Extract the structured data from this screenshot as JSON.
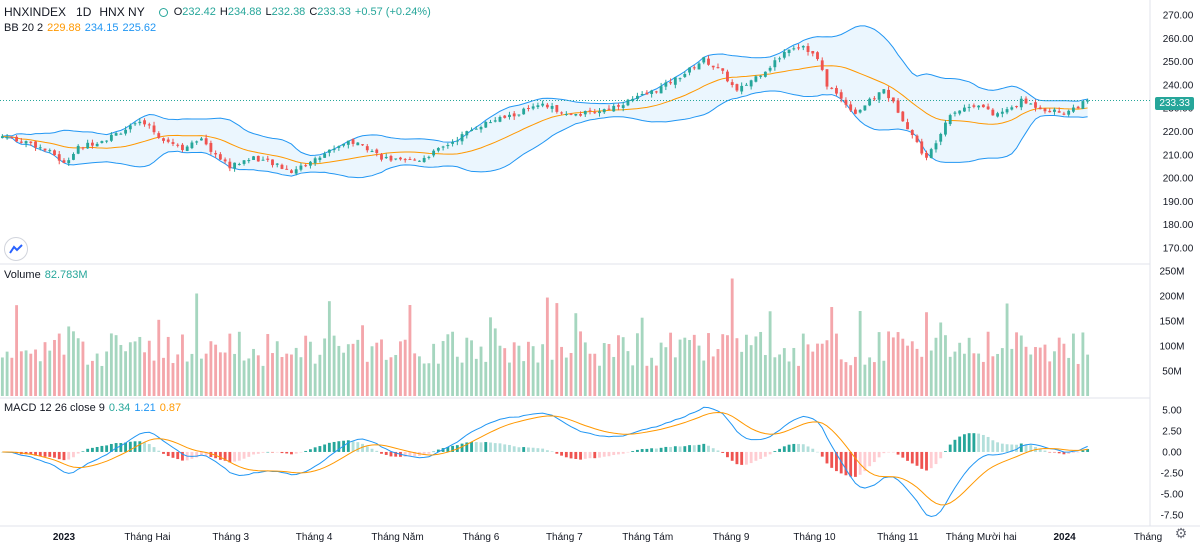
{
  "header": {
    "symbol": "HNXINDEX",
    "interval": "1D",
    "exchange": "HNX NY",
    "ohlc": {
      "o_label": "O",
      "o": "232.42",
      "h_label": "H",
      "h": "234.88",
      "l_label": "L",
      "l": "232.38",
      "c_label": "C",
      "c": "233.33",
      "change": "+0.57 (+0.24%)"
    }
  },
  "bb_legend": {
    "name": "BB 20 2",
    "basis": "229.88",
    "upper": "234.15",
    "lower": "225.62"
  },
  "volume_legend": {
    "name": "Volume",
    "value": "82.783M"
  },
  "macd_legend": {
    "name": "MACD 12 26 close 9",
    "hist": "0.34",
    "macd": "1.21",
    "signal": "0.87"
  },
  "last_price_tag": "233.33",
  "colors": {
    "up": "#26a69a",
    "down": "#ef5350",
    "vol_up": "#a5d6bf",
    "vol_down": "#f4a6ab",
    "bb_band": "#2196f3",
    "bb_basis": "#ff9800",
    "bb_fill": "#e3f2fd",
    "macd": "#2196f3",
    "signal": "#ff9800"
  },
  "chart_data": {
    "type": "candlestick",
    "price_axis": {
      "ticks": [
        "270.00",
        "260.00",
        "250.00",
        "240.00",
        "230.00",
        "220.00",
        "210.00",
        "200.00",
        "190.00",
        "180.00",
        "170.00"
      ],
      "range": [
        164,
        273
      ]
    },
    "volume_axis": {
      "ticks": [
        "250M",
        "200M",
        "150M",
        "100M",
        "50M"
      ],
      "range": [
        0,
        260
      ]
    },
    "macd_axis": {
      "ticks": [
        "5.00",
        "2.50",
        "0.00",
        "-2.50",
        "-5.00",
        "-7.50"
      ],
      "range": [
        -8.6,
        6.2
      ]
    },
    "time_axis": [
      "2023",
      "Tháng Hai",
      "Tháng 3",
      "Tháng 4",
      "Tháng Năm",
      "Tháng 6",
      "Tháng 7",
      "Tháng Tám",
      "Tháng 9",
      "Tháng 10",
      "Tháng 11",
      "Tháng Mười hai",
      "2024",
      "Tháng"
    ],
    "close_keypoints": [
      [
        0,
        218
      ],
      [
        6,
        215
      ],
      [
        11,
        210
      ],
      [
        13,
        206
      ],
      [
        16,
        213
      ],
      [
        22,
        217
      ],
      [
        26,
        221
      ],
      [
        30,
        224
      ],
      [
        33,
        218
      ],
      [
        38,
        213
      ],
      [
        42,
        216
      ],
      [
        45,
        210
      ],
      [
        48,
        205
      ],
      [
        53,
        209
      ],
      [
        57,
        206
      ],
      [
        61,
        203
      ],
      [
        66,
        208
      ],
      [
        70,
        213
      ],
      [
        73,
        216
      ],
      [
        77,
        213
      ],
      [
        80,
        209
      ],
      [
        84,
        207
      ],
      [
        88,
        208
      ],
      [
        92,
        212
      ],
      [
        96,
        217
      ],
      [
        100,
        222
      ],
      [
        104,
        225
      ],
      [
        108,
        227
      ],
      [
        110,
        229
      ],
      [
        114,
        231
      ],
      [
        118,
        229
      ],
      [
        120,
        227
      ],
      [
        124,
        228
      ],
      [
        128,
        230
      ],
      [
        132,
        233
      ],
      [
        136,
        236
      ],
      [
        140,
        240
      ],
      [
        144,
        245
      ],
      [
        148,
        251
      ],
      [
        152,
        245
      ],
      [
        155,
        237
      ],
      [
        158,
        242
      ],
      [
        162,
        248
      ],
      [
        166,
        256
      ],
      [
        169,
        257
      ],
      [
        172,
        251
      ],
      [
        174,
        240
      ],
      [
        177,
        234
      ],
      [
        180,
        228
      ],
      [
        183,
        233
      ],
      [
        186,
        238
      ],
      [
        189,
        229
      ],
      [
        191,
        222
      ],
      [
        193,
        215
      ],
      [
        195,
        208
      ],
      [
        197,
        216
      ],
      [
        200,
        228
      ],
      [
        203,
        230
      ],
      [
        206,
        232
      ],
      [
        209,
        227
      ],
      [
        212,
        229
      ],
      [
        215,
        233
      ],
      [
        218,
        231
      ],
      [
        221,
        229
      ],
      [
        224,
        228
      ],
      [
        226,
        230
      ],
      [
        229,
        233
      ]
    ],
    "last_close": 233.33,
    "bollinger": {
      "length": 20,
      "mult": 2,
      "basis_last": 229.88,
      "upper_last": 234.15,
      "lower_last": 225.62
    },
    "macd": {
      "fast": 12,
      "slow": 26,
      "signal": 9,
      "hist_last": 0.34,
      "macd_last": 1.21,
      "signal_last": 0.87
    }
  }
}
